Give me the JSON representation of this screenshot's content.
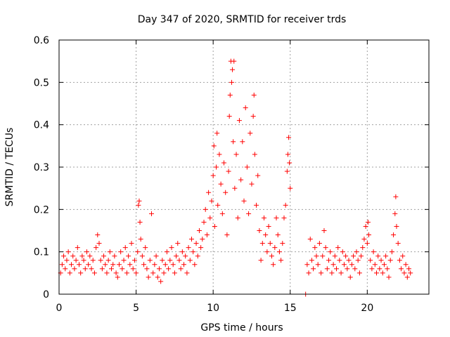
{
  "chart_data": {
    "type": "scatter",
    "title": "Day 347 of 2020, SRMTID for receiver trds",
    "xlabel": "GPS time / hours",
    "ylabel": "SRMTID / TECUs",
    "xlim": [
      0,
      24
    ],
    "ylim": [
      0,
      0.6
    ],
    "xticks": [
      0,
      5,
      10,
      15,
      20
    ],
    "yticks": [
      0,
      0.1,
      0.2,
      0.3,
      0.4,
      0.5,
      0.6
    ],
    "xtick_labels": [
      "0",
      "5",
      "10",
      "15",
      "20"
    ],
    "ytick_labels": [
      "0",
      "0.1",
      "0.2",
      "0.3",
      "0.4",
      "0.5",
      "0.6"
    ],
    "grid": true,
    "marker": "+",
    "color": "#ff0000",
    "series": [
      {
        "name": "SRMTID",
        "points": [
          [
            0.1,
            0.05
          ],
          [
            0.2,
            0.07
          ],
          [
            0.3,
            0.09
          ],
          [
            0.4,
            0.06
          ],
          [
            0.5,
            0.08
          ],
          [
            0.6,
            0.1
          ],
          [
            0.7,
            0.05
          ],
          [
            0.8,
            0.07
          ],
          [
            0.9,
            0.09
          ],
          [
            1.0,
            0.06
          ],
          [
            1.1,
            0.08
          ],
          [
            1.2,
            0.11
          ],
          [
            1.3,
            0.07
          ],
          [
            1.4,
            0.05
          ],
          [
            1.5,
            0.09
          ],
          [
            1.6,
            0.08
          ],
          [
            1.7,
            0.06
          ],
          [
            1.8,
            0.1
          ],
          [
            1.9,
            0.07
          ],
          [
            2.0,
            0.09
          ],
          [
            2.1,
            0.06
          ],
          [
            2.2,
            0.08
          ],
          [
            2.3,
            0.05
          ],
          [
            2.4,
            0.11
          ],
          [
            2.5,
            0.14
          ],
          [
            2.6,
            0.12
          ],
          [
            2.7,
            0.08
          ],
          [
            2.8,
            0.06
          ],
          [
            2.9,
            0.09
          ],
          [
            3.0,
            0.07
          ],
          [
            3.1,
            0.05
          ],
          [
            3.2,
            0.08
          ],
          [
            3.3,
            0.1
          ],
          [
            3.4,
            0.06
          ],
          [
            3.5,
            0.07
          ],
          [
            3.6,
            0.09
          ],
          [
            3.7,
            0.05
          ],
          [
            3.8,
            0.04
          ],
          [
            3.9,
            0.07
          ],
          [
            4.0,
            0.1
          ],
          [
            4.1,
            0.06
          ],
          [
            4.2,
            0.08
          ],
          [
            4.3,
            0.11
          ],
          [
            4.4,
            0.05
          ],
          [
            4.5,
            0.09
          ],
          [
            4.6,
            0.07
          ],
          [
            4.7,
            0.12
          ],
          [
            4.8,
            0.06
          ],
          [
            4.9,
            0.08
          ],
          [
            5.0,
            0.05
          ],
          [
            5.1,
            0.1
          ],
          [
            5.15,
            0.21
          ],
          [
            5.2,
            0.22
          ],
          [
            5.25,
            0.17
          ],
          [
            5.3,
            0.13
          ],
          [
            5.4,
            0.09
          ],
          [
            5.5,
            0.07
          ],
          [
            5.6,
            0.11
          ],
          [
            5.7,
            0.06
          ],
          [
            5.8,
            0.04
          ],
          [
            5.9,
            0.08
          ],
          [
            6.0,
            0.19
          ],
          [
            6.1,
            0.05
          ],
          [
            6.2,
            0.07
          ],
          [
            6.3,
            0.09
          ],
          [
            6.4,
            0.04
          ],
          [
            6.5,
            0.06
          ],
          [
            6.6,
            0.03
          ],
          [
            6.7,
            0.08
          ],
          [
            6.8,
            0.05
          ],
          [
            6.9,
            0.07
          ],
          [
            7.0,
            0.1
          ],
          [
            7.1,
            0.06
          ],
          [
            7.2,
            0.08
          ],
          [
            7.3,
            0.11
          ],
          [
            7.4,
            0.07
          ],
          [
            7.5,
            0.05
          ],
          [
            7.6,
            0.09
          ],
          [
            7.7,
            0.12
          ],
          [
            7.8,
            0.08
          ],
          [
            7.9,
            0.06
          ],
          [
            8.0,
            0.1
          ],
          [
            8.1,
            0.07
          ],
          [
            8.2,
            0.09
          ],
          [
            8.3,
            0.05
          ],
          [
            8.4,
            0.11
          ],
          [
            8.5,
            0.08
          ],
          [
            8.6,
            0.13
          ],
          [
            8.7,
            0.1
          ],
          [
            8.8,
            0.07
          ],
          [
            8.9,
            0.12
          ],
          [
            9.0,
            0.09
          ],
          [
            9.1,
            0.15
          ],
          [
            9.2,
            0.11
          ],
          [
            9.3,
            0.13
          ],
          [
            9.4,
            0.17
          ],
          [
            9.5,
            0.2
          ],
          [
            9.6,
            0.14
          ],
          [
            9.7,
            0.24
          ],
          [
            9.8,
            0.18
          ],
          [
            9.9,
            0.22
          ],
          [
            10.0,
            0.28
          ],
          [
            10.05,
            0.35
          ],
          [
            10.1,
            0.16
          ],
          [
            10.2,
            0.3
          ],
          [
            10.25,
            0.38
          ],
          [
            10.3,
            0.21
          ],
          [
            10.4,
            0.33
          ],
          [
            10.5,
            0.26
          ],
          [
            10.6,
            0.19
          ],
          [
            10.7,
            0.31
          ],
          [
            10.8,
            0.24
          ],
          [
            10.9,
            0.14
          ],
          [
            11.0,
            0.29
          ],
          [
            11.05,
            0.42
          ],
          [
            11.1,
            0.47
          ],
          [
            11.15,
            0.55
          ],
          [
            11.2,
            0.5
          ],
          [
            11.25,
            0.53
          ],
          [
            11.3,
            0.36
          ],
          [
            11.35,
            0.55
          ],
          [
            11.4,
            0.25
          ],
          [
            11.5,
            0.33
          ],
          [
            11.6,
            0.18
          ],
          [
            11.7,
            0.41
          ],
          [
            11.8,
            0.27
          ],
          [
            11.9,
            0.36
          ],
          [
            12.0,
            0.22
          ],
          [
            12.1,
            0.44
          ],
          [
            12.2,
            0.3
          ],
          [
            12.3,
            0.19
          ],
          [
            12.4,
            0.38
          ],
          [
            12.5,
            0.26
          ],
          [
            12.6,
            0.42
          ],
          [
            12.65,
            0.47
          ],
          [
            12.7,
            0.33
          ],
          [
            12.8,
            0.21
          ],
          [
            12.9,
            0.28
          ],
          [
            13.0,
            0.15
          ],
          [
            13.1,
            0.08
          ],
          [
            13.2,
            0.12
          ],
          [
            13.3,
            0.18
          ],
          [
            13.4,
            0.14
          ],
          [
            13.5,
            0.1
          ],
          [
            13.6,
            0.16
          ],
          [
            13.7,
            0.12
          ],
          [
            13.8,
            0.09
          ],
          [
            13.9,
            0.07
          ],
          [
            14.0,
            0.11
          ],
          [
            14.1,
            0.18
          ],
          [
            14.2,
            0.14
          ],
          [
            14.3,
            0.1
          ],
          [
            14.4,
            0.08
          ],
          [
            14.5,
            0.12
          ],
          [
            14.6,
            0.18
          ],
          [
            14.7,
            0.21
          ],
          [
            14.8,
            0.29
          ],
          [
            14.85,
            0.33
          ],
          [
            14.9,
            0.37
          ],
          [
            14.95,
            0.31
          ],
          [
            15.0,
            0.25
          ],
          [
            16.0,
            0.0
          ],
          [
            16.1,
            0.07
          ],
          [
            16.2,
            0.05
          ],
          [
            16.3,
            0.13
          ],
          [
            16.4,
            0.08
          ],
          [
            16.5,
            0.06
          ],
          [
            16.6,
            0.11
          ],
          [
            16.7,
            0.09
          ],
          [
            16.8,
            0.07
          ],
          [
            16.9,
            0.12
          ],
          [
            17.0,
            0.05
          ],
          [
            17.1,
            0.09
          ],
          [
            17.2,
            0.15
          ],
          [
            17.3,
            0.11
          ],
          [
            17.4,
            0.06
          ],
          [
            17.5,
            0.08
          ],
          [
            17.6,
            0.1
          ],
          [
            17.7,
            0.05
          ],
          [
            17.8,
            0.07
          ],
          [
            17.9,
            0.09
          ],
          [
            18.0,
            0.06
          ],
          [
            18.1,
            0.11
          ],
          [
            18.2,
            0.08
          ],
          [
            18.3,
            0.05
          ],
          [
            18.4,
            0.1
          ],
          [
            18.5,
            0.07
          ],
          [
            18.6,
            0.09
          ],
          [
            18.7,
            0.06
          ],
          [
            18.8,
            0.08
          ],
          [
            18.9,
            0.04
          ],
          [
            19.0,
            0.07
          ],
          [
            19.1,
            0.09
          ],
          [
            19.2,
            0.06
          ],
          [
            19.3,
            0.1
          ],
          [
            19.4,
            0.08
          ],
          [
            19.5,
            0.05
          ],
          [
            19.6,
            0.09
          ],
          [
            19.7,
            0.11
          ],
          [
            19.8,
            0.13
          ],
          [
            19.9,
            0.16
          ],
          [
            20.0,
            0.12
          ],
          [
            20.05,
            0.17
          ],
          [
            20.1,
            0.14
          ],
          [
            20.2,
            0.08
          ],
          [
            20.3,
            0.06
          ],
          [
            20.4,
            0.1
          ],
          [
            20.5,
            0.07
          ],
          [
            20.6,
            0.05
          ],
          [
            20.7,
            0.09
          ],
          [
            20.8,
            0.06
          ],
          [
            20.9,
            0.08
          ],
          [
            21.0,
            0.05
          ],
          [
            21.1,
            0.07
          ],
          [
            21.2,
            0.09
          ],
          [
            21.3,
            0.06
          ],
          [
            21.4,
            0.04
          ],
          [
            21.5,
            0.08
          ],
          [
            21.6,
            0.1
          ],
          [
            21.7,
            0.14
          ],
          [
            21.8,
            0.19
          ],
          [
            21.85,
            0.23
          ],
          [
            21.9,
            0.16
          ],
          [
            22.0,
            0.12
          ],
          [
            22.1,
            0.08
          ],
          [
            22.2,
            0.06
          ],
          [
            22.3,
            0.09
          ],
          [
            22.4,
            0.05
          ],
          [
            22.5,
            0.07
          ],
          [
            22.6,
            0.04
          ],
          [
            22.7,
            0.06
          ],
          [
            22.8,
            0.05
          ]
        ]
      }
    ]
  }
}
